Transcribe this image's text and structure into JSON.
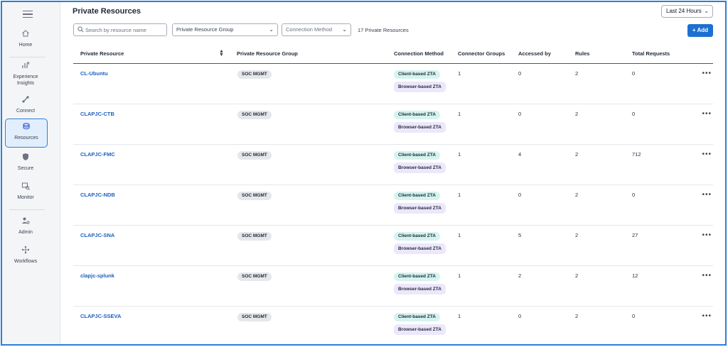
{
  "nav": {
    "items": [
      {
        "label": "Home",
        "icon": "home-icon"
      },
      {
        "label": "Experience\nInsights",
        "icon": "insights-icon"
      },
      {
        "label": "Connect",
        "icon": "connect-icon"
      },
      {
        "label": "Resources",
        "icon": "resources-icon",
        "active": true
      },
      {
        "label": "Secure",
        "icon": "shield-icon"
      },
      {
        "label": "Monitor",
        "icon": "monitor-icon"
      },
      {
        "label": "Admin",
        "icon": "admin-icon"
      },
      {
        "label": "Workflows",
        "icon": "workflows-icon"
      }
    ]
  },
  "page": {
    "title": "Private Resources",
    "time_range": "Last 24 Hours",
    "add_label": "+ Add",
    "search_placeholder": "Search by resource name",
    "group_filter": "Private Resource Group",
    "method_filter": "Connection Method",
    "count_text": "17 Private Resources"
  },
  "table": {
    "headers": {
      "resource": "Private Resource",
      "group": "Private Resource Group",
      "method": "Connection Method",
      "connector_groups": "Connector Groups",
      "accessed_by": "Accessed by",
      "rules": "Rules",
      "total_requests": "Total Requests"
    },
    "rows": [
      {
        "name": "CL-Ubuntu",
        "group": "SOC MGMT",
        "method1": "Client-based ZTA",
        "method2": "Browser-based ZTA",
        "connector_groups": "1",
        "accessed_by": "0",
        "rules": "2",
        "total_requests": "0"
      },
      {
        "name": "CLAPJC-CTB",
        "group": "SOC MGMT",
        "method1": "Client-based ZTA",
        "method2": "Browser-based ZTA",
        "connector_groups": "1",
        "accessed_by": "0",
        "rules": "2",
        "total_requests": "0"
      },
      {
        "name": "CLAPJC-FMC",
        "group": "SOC MGMT",
        "method1": "Client-based ZTA",
        "method2": "Browser-based ZTA",
        "connector_groups": "1",
        "accessed_by": "4",
        "rules": "2",
        "total_requests": "712"
      },
      {
        "name": "CLAPJC-NDB",
        "group": "SOC MGMT",
        "method1": "Client-based ZTA",
        "method2": "Browser-based ZTA",
        "connector_groups": "1",
        "accessed_by": "0",
        "rules": "2",
        "total_requests": "0"
      },
      {
        "name": "CLAPJC-SNA",
        "group": "SOC MGMT",
        "method1": "Client-based ZTA",
        "method2": "Browser-based ZTA",
        "connector_groups": "1",
        "accessed_by": "5",
        "rules": "2",
        "total_requests": "27"
      },
      {
        "name": "clapjc-splunk",
        "group": "SOC MGMT",
        "method1": "Client-based ZTA",
        "method2": "Browser-based ZTA",
        "connector_groups": "1",
        "accessed_by": "2",
        "rules": "2",
        "total_requests": "12"
      },
      {
        "name": "CLAPJC-SSEVA",
        "group": "SOC MGMT",
        "method1": "Client-based ZTA",
        "method2": "Browser-based ZTA",
        "connector_groups": "1",
        "accessed_by": "0",
        "rules": "2",
        "total_requests": "0"
      }
    ]
  },
  "colors": {
    "accent": "#1d6fd1",
    "link": "#1d5fbf",
    "active_nav_bg": "#e3eefc",
    "tag_teal": "#d5f3ef",
    "tag_purple": "#ede7fb"
  }
}
